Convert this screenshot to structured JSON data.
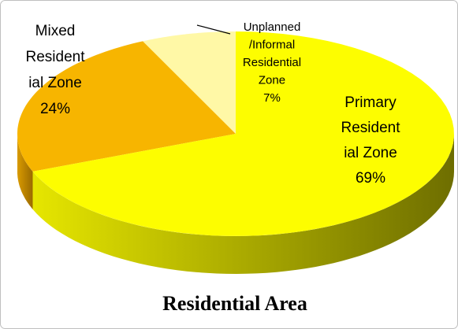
{
  "chart_data": {
    "type": "pie",
    "title": "Residential Area",
    "categories": [
      "Unplanned/Informal Residential Zone",
      "Mixed Residential Zone",
      "Primary Residential Zone"
    ],
    "values": [
      7,
      24,
      69
    ],
    "value_labels": [
      "7%",
      "24%",
      "69%"
    ],
    "colors": [
      "#fff8a6",
      "#f7b500",
      "#fdfd00"
    ],
    "side_colors": [
      [
        "#e8df80",
        "#a89a40"
      ],
      [
        "#d99a00",
        "#9a6a00"
      ],
      [
        "#e6e600",
        "#6e6e00"
      ]
    ]
  }
}
